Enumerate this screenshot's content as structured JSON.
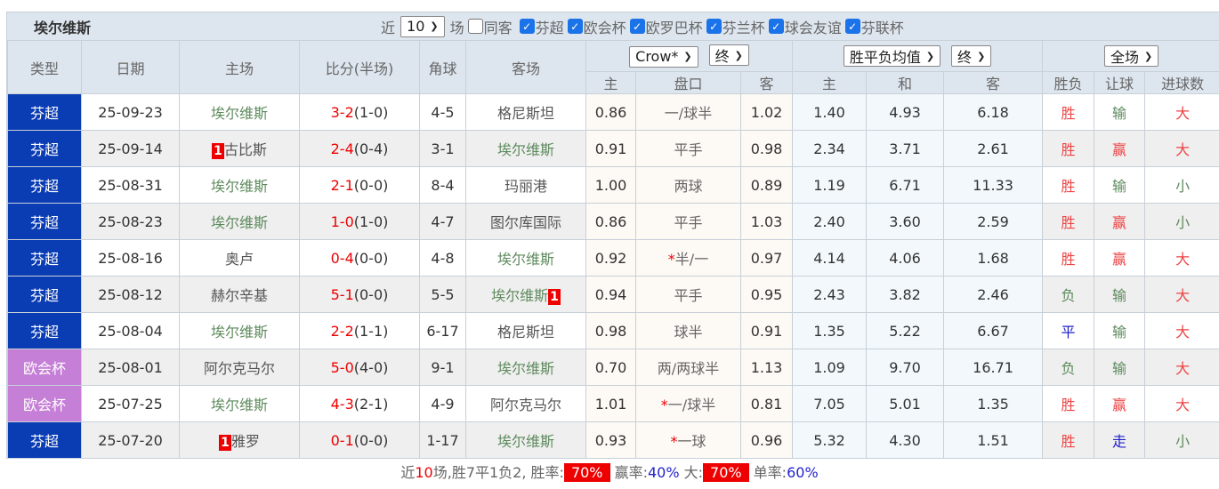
{
  "title": "埃尔维斯",
  "filters": {
    "prefix": "近",
    "count": "10",
    "suffix": "场",
    "same_home": "同客",
    "leagues": [
      "芬超",
      "欧会杯",
      "欧罗巴杯",
      "芬兰杯",
      "球会友谊",
      "芬联杯"
    ]
  },
  "headers": {
    "type": "类型",
    "date": "日期",
    "home": "主场",
    "score": "比分(半场)",
    "corner": "角球",
    "away": "客场",
    "asian_company": "Crow*",
    "asian_stage": "终",
    "euro_type": "胜平负均值",
    "euro_stage": "终",
    "period": "全场",
    "sub": [
      "主",
      "盘口",
      "客",
      "主",
      "和",
      "客",
      "胜负",
      "让球",
      "进球数"
    ]
  },
  "colors": {
    "league_finland": "#0a3cb4",
    "league_conference": "#c67fd6",
    "win": "#e44",
    "lose": "#5d8a5d",
    "draw": "#2222cc"
  },
  "rows": [
    {
      "type": "芬超",
      "date": "25-09-23",
      "home": "埃尔维斯",
      "home_rc": "",
      "score": "3-2",
      "half": "(1-0)",
      "corner": "4-5",
      "away": "格尼斯坦",
      "away_rc": "",
      "ah": "0.86",
      "line": "一/球半",
      "star": "",
      "aa": "1.02",
      "eh": "1.40",
      "ed": "4.93",
      "ea": "6.18",
      "res": "胜",
      "hc": "输",
      "ou": "大"
    },
    {
      "type": "芬超",
      "date": "25-09-14",
      "home": "古比斯",
      "home_rc": "1",
      "score": "2-4",
      "half": "(0-4)",
      "corner": "3-1",
      "away": "埃尔维斯",
      "away_rc": "",
      "ah": "0.91",
      "line": "平手",
      "star": "",
      "aa": "0.98",
      "eh": "2.34",
      "ed": "3.71",
      "ea": "2.61",
      "res": "胜",
      "hc": "赢",
      "ou": "大"
    },
    {
      "type": "芬超",
      "date": "25-08-31",
      "home": "埃尔维斯",
      "home_rc": "",
      "score": "2-1",
      "half": "(0-0)",
      "corner": "8-4",
      "away": "玛丽港",
      "away_rc": "",
      "ah": "1.00",
      "line": "两球",
      "star": "",
      "aa": "0.89",
      "eh": "1.19",
      "ed": "6.71",
      "ea": "11.33",
      "res": "胜",
      "hc": "输",
      "ou": "小"
    },
    {
      "type": "芬超",
      "date": "25-08-23",
      "home": "埃尔维斯",
      "home_rc": "",
      "score": "1-0",
      "half": "(1-0)",
      "corner": "4-7",
      "away": "图尔库国际",
      "away_rc": "",
      "ah": "0.86",
      "line": "平手",
      "star": "",
      "aa": "1.03",
      "eh": "2.40",
      "ed": "3.60",
      "ea": "2.59",
      "res": "胜",
      "hc": "赢",
      "ou": "小"
    },
    {
      "type": "芬超",
      "date": "25-08-16",
      "home": "奥卢",
      "home_rc": "",
      "score": "0-4",
      "half": "(0-0)",
      "corner": "4-8",
      "away": "埃尔维斯",
      "away_rc": "",
      "ah": "0.92",
      "line": "半/一",
      "star": "*",
      "aa": "0.97",
      "eh": "4.14",
      "ed": "4.06",
      "ea": "1.68",
      "res": "胜",
      "hc": "赢",
      "ou": "大"
    },
    {
      "type": "芬超",
      "date": "25-08-12",
      "home": "赫尔辛基",
      "home_rc": "",
      "score": "5-1",
      "half": "(0-0)",
      "corner": "5-5",
      "away": "埃尔维斯",
      "away_rc": "1",
      "ah": "0.94",
      "line": "平手",
      "star": "",
      "aa": "0.95",
      "eh": "2.43",
      "ed": "3.82",
      "ea": "2.46",
      "res": "负",
      "hc": "输",
      "ou": "大"
    },
    {
      "type": "芬超",
      "date": "25-08-04",
      "home": "埃尔维斯",
      "home_rc": "",
      "score": "2-2",
      "half": "(1-1)",
      "corner": "6-17",
      "away": "格尼斯坦",
      "away_rc": "",
      "ah": "0.98",
      "line": "球半",
      "star": "",
      "aa": "0.91",
      "eh": "1.35",
      "ed": "5.22",
      "ea": "6.67",
      "res": "平",
      "hc": "输",
      "ou": "大"
    },
    {
      "type": "欧会杯",
      "date": "25-08-01",
      "home": "阿尔克马尔",
      "home_rc": "",
      "score": "5-0",
      "half": "(4-0)",
      "corner": "9-1",
      "away": "埃尔维斯",
      "away_rc": "",
      "ah": "0.70",
      "line": "两/两球半",
      "star": "",
      "aa": "1.13",
      "eh": "1.09",
      "ed": "9.70",
      "ea": "16.71",
      "res": "负",
      "hc": "输",
      "ou": "大"
    },
    {
      "type": "欧会杯",
      "date": "25-07-25",
      "home": "埃尔维斯",
      "home_rc": "",
      "score": "4-3",
      "half": "(2-1)",
      "corner": "4-9",
      "away": "阿尔克马尔",
      "away_rc": "",
      "ah": "1.01",
      "line": "一/球半",
      "star": "*",
      "aa": "0.81",
      "eh": "7.05",
      "ed": "5.01",
      "ea": "1.35",
      "res": "胜",
      "hc": "赢",
      "ou": "大"
    },
    {
      "type": "芬超",
      "date": "25-07-20",
      "home": "雅罗",
      "home_rc": "1",
      "score": "0-1",
      "half": "(0-0)",
      "corner": "1-17",
      "away": "埃尔维斯",
      "away_rc": "",
      "ah": "0.93",
      "line": "一球",
      "star": "*",
      "aa": "0.96",
      "eh": "5.32",
      "ed": "4.30",
      "ea": "1.51",
      "res": "胜",
      "hc": "走",
      "ou": "小"
    }
  ],
  "summary": {
    "t1": "近",
    "n": "10",
    "t2": "场,胜7平1负2, 胜率:",
    "win_rate": "70%",
    "t3": " 赢率:",
    "cover_rate": "40%",
    "t4": " 大:",
    "over_rate": "70%",
    "t5": " 单率:",
    "odd_rate": "60%"
  }
}
